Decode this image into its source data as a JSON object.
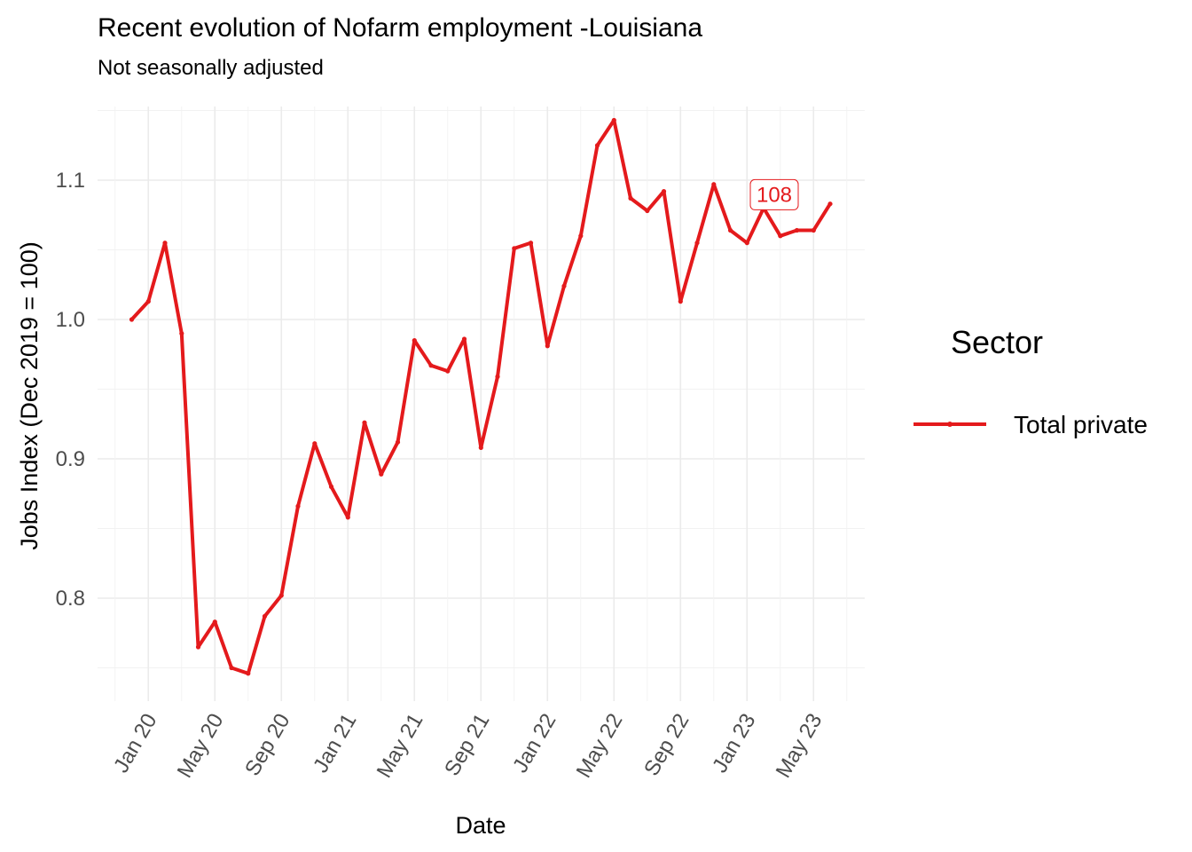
{
  "chart_data": {
    "type": "line",
    "title": "Recent evolution of Nofarm employment -Louisiana",
    "subtitle": "Not seasonally adjusted",
    "xlabel": "Date",
    "ylabel": "Jobs Index (Dec 2019 = 100)",
    "x_ticks": [
      "Jan 20",
      "May 20",
      "Sep 20",
      "Jan 21",
      "May 21",
      "Sep 21",
      "Jan 22",
      "May 22",
      "Sep 22",
      "Jan 23",
      "May 23"
    ],
    "y_ticks": [
      "0.8",
      "0.9",
      "1.0",
      "1.1"
    ],
    "ylim": [
      0.725,
      1.16
    ],
    "grid": true,
    "legend": {
      "title": "Sector",
      "position": "right"
    },
    "series": [
      {
        "name": "Total private",
        "color": "#e41a1c",
        "x": [
          "2019-12",
          "2020-01",
          "2020-02",
          "2020-03",
          "2020-04",
          "2020-05",
          "2020-06",
          "2020-07",
          "2020-08",
          "2020-09",
          "2020-10",
          "2020-11",
          "2020-12",
          "2021-01",
          "2021-02",
          "2021-03",
          "2021-04",
          "2021-05",
          "2021-06",
          "2021-07",
          "2021-08",
          "2021-09",
          "2021-10",
          "2021-11",
          "2021-12",
          "2022-01",
          "2022-02",
          "2022-03",
          "2022-04",
          "2022-05",
          "2022-06",
          "2022-07",
          "2022-08",
          "2022-09",
          "2022-10",
          "2022-11",
          "2022-12",
          "2023-01",
          "2023-02",
          "2023-03",
          "2023-04",
          "2023-05",
          "2023-06"
        ],
        "values": [
          1.0,
          1.013,
          1.055,
          0.99,
          0.765,
          0.783,
          0.75,
          0.746,
          0.787,
          0.802,
          0.866,
          0.911,
          0.88,
          0.858,
          0.926,
          0.889,
          0.912,
          0.985,
          0.967,
          0.963,
          0.986,
          0.908,
          0.959,
          1.051,
          1.055,
          0.981,
          1.024,
          1.06,
          1.125,
          1.143,
          1.087,
          1.078,
          1.092,
          1.013,
          1.055,
          1.097,
          1.064,
          1.055,
          1.08,
          1.06,
          1.064,
          1.064,
          1.083
        ]
      }
    ],
    "annotations": [
      {
        "text": "108",
        "x": "2023-02",
        "y": 1.08
      }
    ]
  }
}
